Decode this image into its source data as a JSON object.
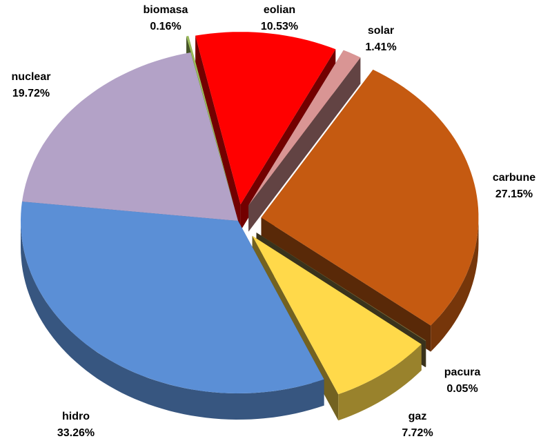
{
  "chart_data": {
    "type": "pie",
    "categories": [
      "eolian",
      "solar",
      "carbune",
      "pacura",
      "gaz",
      "hidro",
      "nuclear",
      "biomasa"
    ],
    "values": [
      10.53,
      1.41,
      27.15,
      0.05,
      7.72,
      33.26,
      19.72,
      0.16
    ],
    "value_labels": [
      "10.53%",
      "1.41%",
      "27.15%",
      "0.05%",
      "7.72%",
      "33.26%",
      "19.72%",
      "0.16%"
    ],
    "colors": [
      "#ff0000",
      "#d99594",
      "#c55a11",
      "#7f6f3f",
      "#ffd94a",
      "#5b8fd6",
      "#b3a2c7",
      "#9bbb59"
    ]
  }
}
